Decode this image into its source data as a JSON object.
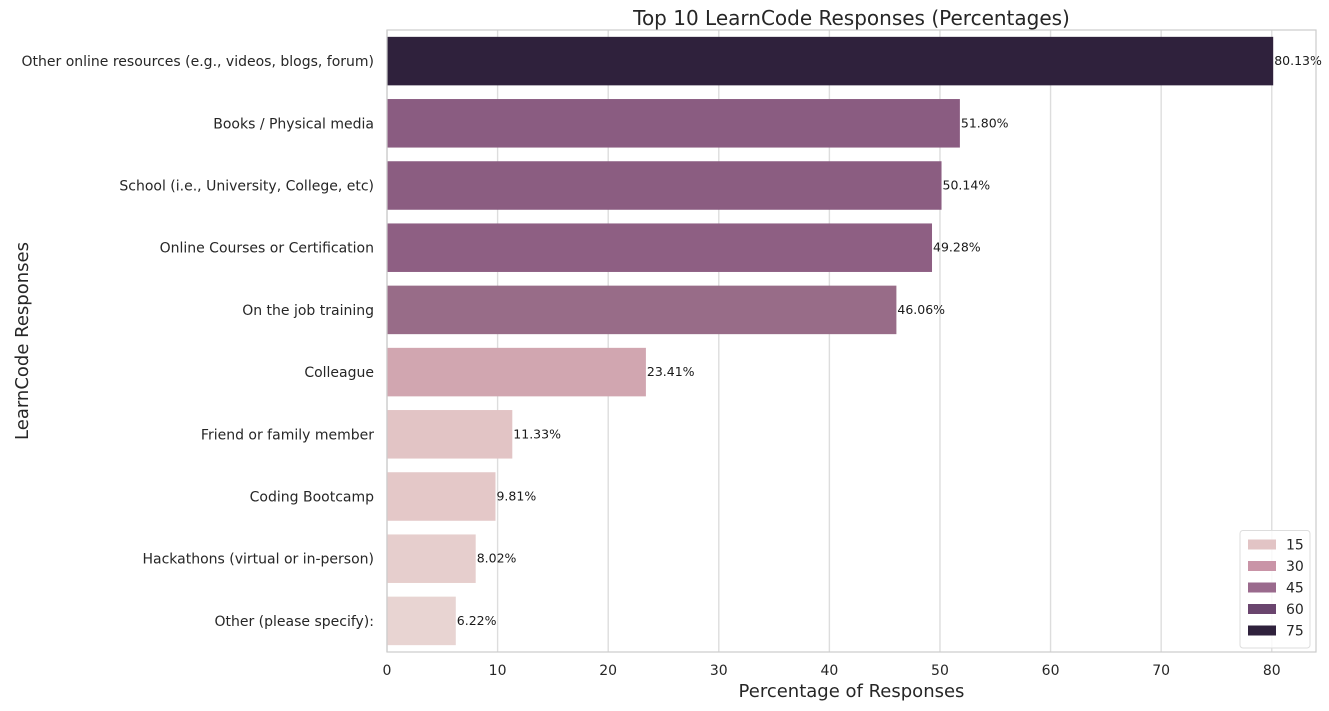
{
  "chart_data": {
    "type": "bar",
    "orientation": "horizontal",
    "title": "Top 10 LearnCode Responses (Percentages)",
    "xlabel": "Percentage of Responses",
    "ylabel": "LearnCode Responses",
    "xlim": [
      0,
      84
    ],
    "xticks": [
      0,
      10,
      20,
      30,
      40,
      50,
      60,
      70,
      80
    ],
    "grid": "vertical",
    "categories": [
      "Other online resources (e.g., videos, blogs, forum)",
      "Books / Physical media",
      "School (i.e., University, College, etc)",
      "Online Courses or Certification",
      "On the job training",
      "Colleague",
      "Friend or family member",
      "Coding Bootcamp",
      "Hackathons (virtual or in-person)",
      "Other (please specify):"
    ],
    "values": [
      80.13,
      51.8,
      50.14,
      49.28,
      46.06,
      23.41,
      11.33,
      9.81,
      8.02,
      6.22
    ],
    "data_labels": [
      "80.13%",
      "51.80%",
      "50.14%",
      "49.28%",
      "46.06%",
      "23.41%",
      "11.33%",
      "9.81%",
      "8.02%",
      "6.22%"
    ],
    "bar_colors": [
      "#2f213c",
      "#8a5c81",
      "#8b5d81",
      "#8e5f83",
      "#986c88",
      "#d1a6b0",
      "#e2c4c5",
      "#e4c8c8",
      "#e6cecd",
      "#e8d4d2"
    ],
    "legend": {
      "placement": "lower-right",
      "entries": [
        {
          "label": "15",
          "color": "#e2c4c5"
        },
        {
          "label": "30",
          "color": "#c994a7"
        },
        {
          "label": "45",
          "color": "#9a6a8d"
        },
        {
          "label": "60",
          "color": "#6a456e"
        },
        {
          "label": "75",
          "color": "#2f213c"
        }
      ]
    }
  }
}
